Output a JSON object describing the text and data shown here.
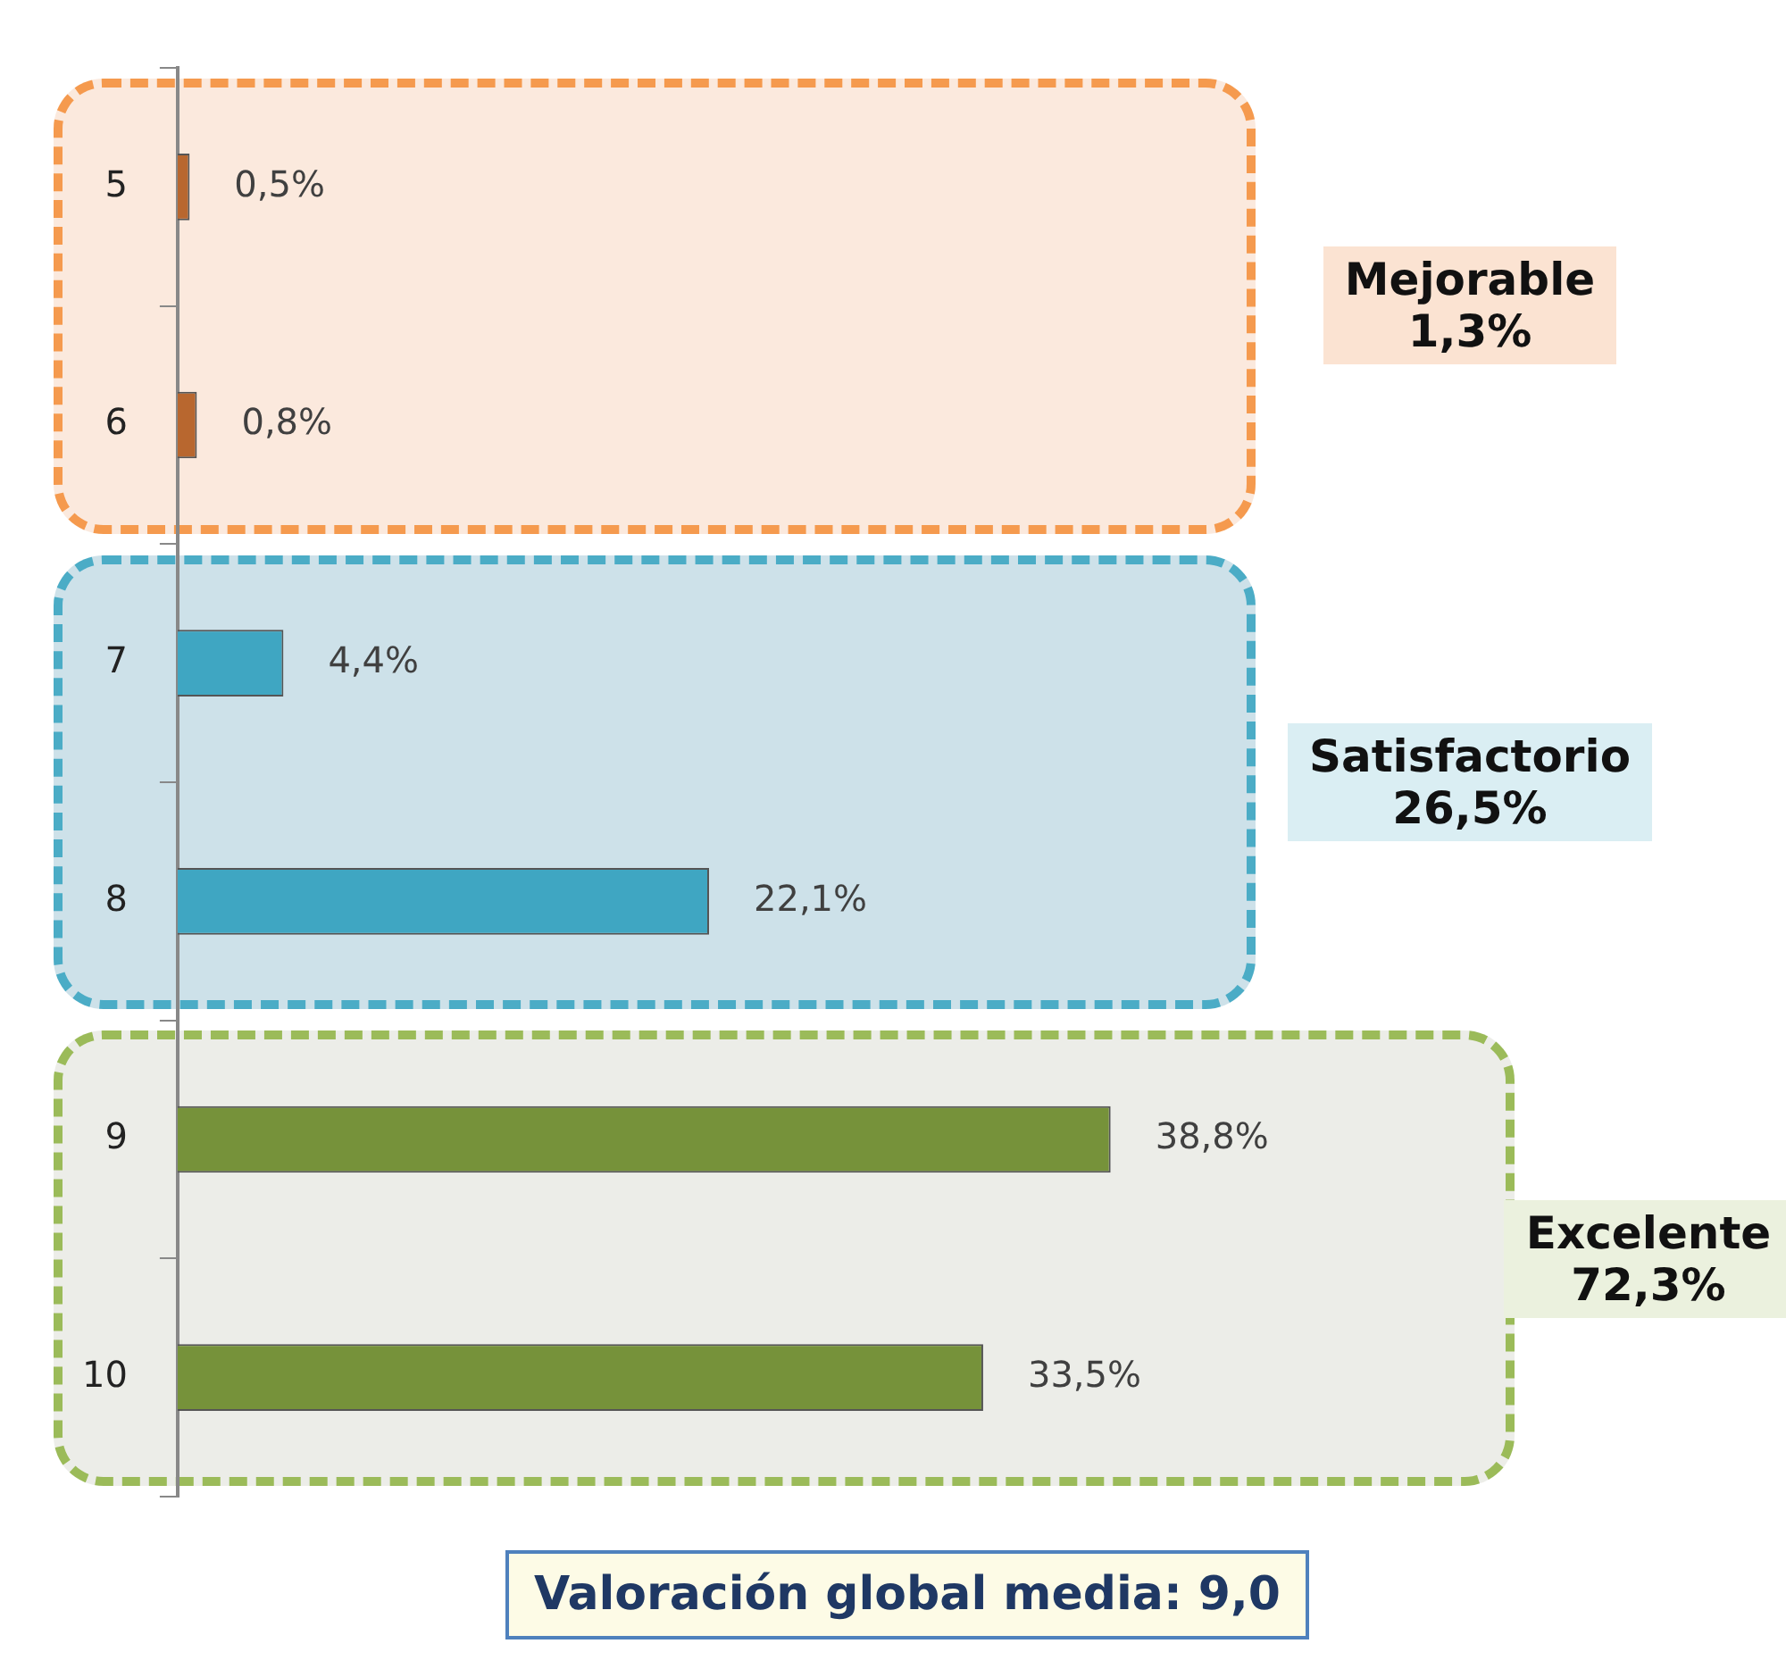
{
  "chart_data": {
    "type": "bar",
    "orientation": "horizontal",
    "categories": [
      "5",
      "6",
      "7",
      "8",
      "9",
      "10"
    ],
    "values": [
      0.5,
      0.8,
      4.4,
      22.1,
      38.8,
      33.5
    ],
    "colors": [
      "#b8672f",
      "#b8672f",
      "#3fa6c2",
      "#3fa6c2",
      "#76923a",
      "#76923a"
    ],
    "value_labels": [
      "0,5%",
      "0,8%",
      "4,4%",
      "22,1%",
      "38,8%",
      "33,5%"
    ],
    "annotations": [
      "Mejorable\n1,3%",
      "Satisfactorio\n26,5%",
      "Excelente\n72,3%",
      "Valoración global media: 9,0"
    ],
    "legend": false
  }
}
